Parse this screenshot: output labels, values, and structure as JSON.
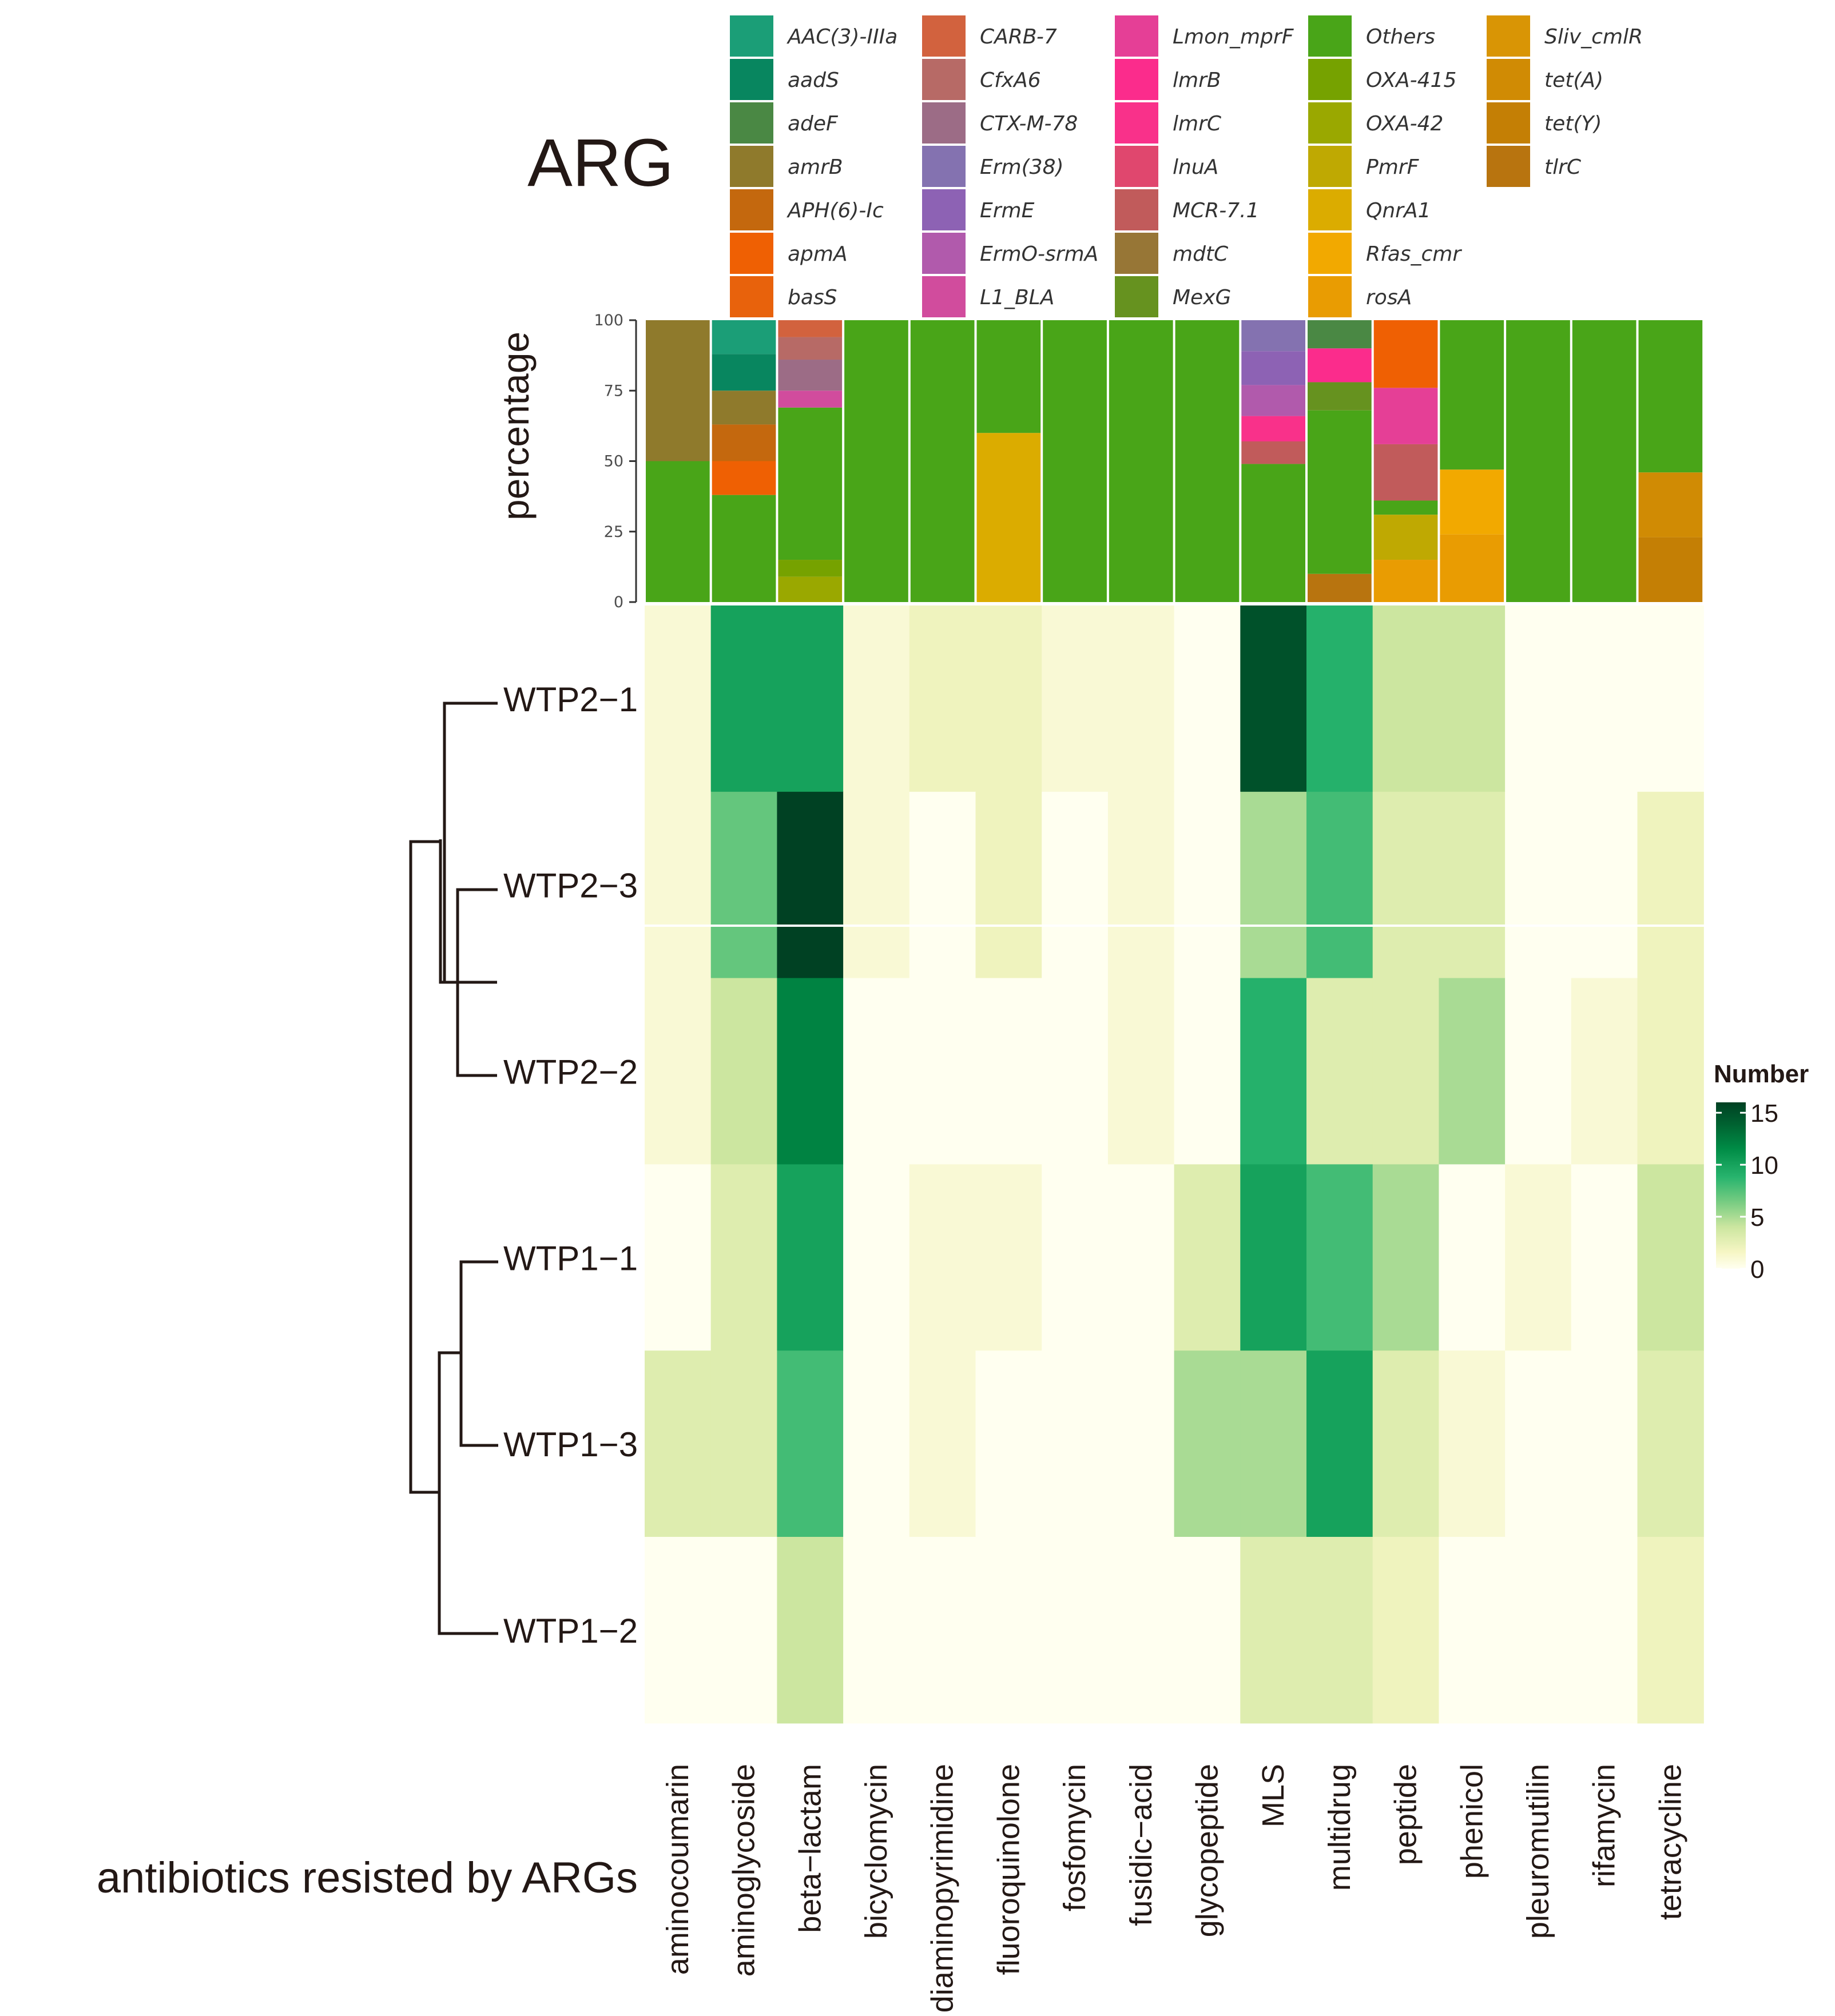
{
  "chart_data": {
    "type": "heatmap",
    "title": "ARG",
    "xlabel": "antibiotics resisted by ARGs",
    "legend_title": "Number",
    "categories": [
      "aminocoumarin",
      "aminoglycoside",
      "beta−lactam",
      "bicyclomycin",
      "diaminopyrimidine",
      "fluoroquinolone",
      "fosfomycin",
      "fusidic−acid",
      "glycopeptide",
      "MLS",
      "multidrug",
      "peptide",
      "phenicol",
      "pleuromutilin",
      "rifamycin",
      "tetracycline"
    ],
    "rows": [
      "WTP2−1",
      "WTP2−3",
      "WTP2−2",
      "WTP1−1",
      "WTP1−3",
      "WTP1−2"
    ],
    "values": [
      [
        1,
        10,
        10,
        1,
        2,
        2,
        1,
        1,
        0,
        15,
        9,
        4,
        4,
        0,
        0,
        0
      ],
      [
        1,
        7,
        16,
        1,
        0,
        2,
        0,
        1,
        0,
        5,
        8,
        3,
        3,
        0,
        0,
        2
      ],
      [
        1,
        4,
        12,
        0,
        0,
        0,
        0,
        1,
        0,
        9,
        3,
        3,
        5,
        0,
        1,
        2
      ],
      [
        0,
        3,
        10,
        0,
        1,
        1,
        0,
        0,
        3,
        10,
        8,
        5,
        0,
        1,
        0,
        4
      ],
      [
        3,
        3,
        8,
        0,
        1,
        0,
        0,
        0,
        5,
        5,
        10,
        3,
        1,
        0,
        0,
        3
      ],
      [
        0,
        0,
        4,
        0,
        0,
        0,
        0,
        0,
        0,
        3,
        3,
        2,
        0,
        0,
        0,
        2
      ]
    ],
    "colorbar": {
      "ticks": [
        "0",
        "5",
        "10",
        "15"
      ],
      "range": [
        0,
        16
      ]
    },
    "stacked": {
      "ylabel": "percentage",
      "ylim": [
        0,
        100
      ],
      "yticks": [
        "0",
        "25",
        "50",
        "75",
        "100"
      ],
      "segments": [
        [
          [
            "Others",
            50
          ],
          [
            "amrB",
            50
          ]
        ],
        [
          [
            "Others",
            38
          ],
          [
            "apmA",
            12
          ],
          [
            "APH(6)-Ic",
            13
          ],
          [
            "amrB",
            12
          ],
          [
            "aadS",
            13
          ],
          [
            "AAC(3)-IIIa",
            12
          ]
        ],
        [
          [
            "OXA-42",
            9
          ],
          [
            "OXA-415",
            6
          ],
          [
            "Others",
            54
          ],
          [
            "L1_BLA",
            6
          ],
          [
            "CTX-M-78",
            11
          ],
          [
            "CfxA6",
            8
          ],
          [
            "CARB-7",
            6
          ]
        ],
        [
          [
            "Others",
            100
          ]
        ],
        [
          [
            "Others",
            100
          ]
        ],
        [
          [
            "QnrA1",
            60
          ],
          [
            "Others",
            40
          ]
        ],
        [
          [
            "Others",
            100
          ]
        ],
        [
          [
            "Others",
            100
          ]
        ],
        [
          [
            "Others",
            100
          ]
        ],
        [
          [
            "Others",
            49
          ],
          [
            "MCR-7.1",
            8
          ],
          [
            "lmrC",
            9
          ],
          [
            "ErmO-srmA",
            11
          ],
          [
            "ErmE",
            12
          ],
          [
            "Erm(38)",
            11
          ]
        ],
        [
          [
            "tlrC",
            10
          ],
          [
            "Others",
            58
          ],
          [
            "MexG",
            10
          ],
          [
            "lmrB",
            12
          ],
          [
            "adeF",
            10
          ]
        ],
        [
          [
            "rosA",
            15
          ],
          [
            "PmrF",
            16
          ],
          [
            "Others",
            5
          ],
          [
            "MCR-7.1",
            20
          ],
          [
            "Lmon_mprF",
            20
          ],
          [
            "apmA",
            24
          ]
        ],
        [
          [
            "rosA",
            24
          ],
          [
            "Rfas_cmr",
            23
          ],
          [
            "Others",
            53
          ]
        ],
        [
          [
            "Others",
            100
          ]
        ],
        [
          [
            "Others",
            100
          ]
        ],
        [
          [
            "tet(Y)",
            23
          ],
          [
            "tet(A)",
            23
          ],
          [
            "Others",
            54
          ]
        ]
      ]
    },
    "legend": [
      {
        "name": "AAC(3)-IIIa",
        "color": "#1b9e77"
      },
      {
        "name": "aadS",
        "color": "#08865f"
      },
      {
        "name": "adeF",
        "color": "#4a8844"
      },
      {
        "name": "amrB",
        "color": "#8f7a2c"
      },
      {
        "name": "APH(6)-Ic",
        "color": "#c4680e"
      },
      {
        "name": "apmA",
        "color": "#ef6003"
      },
      {
        "name": "basS",
        "color": "#e8620c"
      },
      {
        "name": "CARB-7",
        "color": "#d2623e"
      },
      {
        "name": "CfxA6",
        "color": "#b76a66"
      },
      {
        "name": "CTX-M-78",
        "color": "#9c6c86"
      },
      {
        "name": "Erm(38)",
        "color": "#8472b0"
      },
      {
        "name": "ErmE",
        "color": "#8d62b4"
      },
      {
        "name": "ErmO-srmA",
        "color": "#b15aac"
      },
      {
        "name": "L1_BLA",
        "color": "#d14c9d"
      },
      {
        "name": "Lmon_mprF",
        "color": "#e53f96"
      },
      {
        "name": "lmrB",
        "color": "#fb2c8c"
      },
      {
        "name": "lmrC",
        "color": "#f9318a"
      },
      {
        "name": "lnuA",
        "color": "#e0476e"
      },
      {
        "name": "MCR-7.1",
        "color": "#c15b5b"
      },
      {
        "name": "mdtC",
        "color": "#977636"
      },
      {
        "name": "MexG",
        "color": "#66921f"
      },
      {
        "name": "Others",
        "color": "#49a518"
      },
      {
        "name": "OXA-415",
        "color": "#76a200"
      },
      {
        "name": "OXA-42",
        "color": "#9aa800"
      },
      {
        "name": "PmrF",
        "color": "#bfa902"
      },
      {
        "name": "QnrA1",
        "color": "#dbac00"
      },
      {
        "name": "Rfas_cmr",
        "color": "#f2a900"
      },
      {
        "name": "rosA",
        "color": "#e99c02"
      },
      {
        "name": "Sliv_cmlR",
        "color": "#d99505"
      },
      {
        "name": "tet(A)",
        "color": "#d08b04"
      },
      {
        "name": "tet(Y)",
        "color": "#c47f05"
      },
      {
        "name": "tlrC",
        "color": "#b8740f"
      }
    ]
  }
}
